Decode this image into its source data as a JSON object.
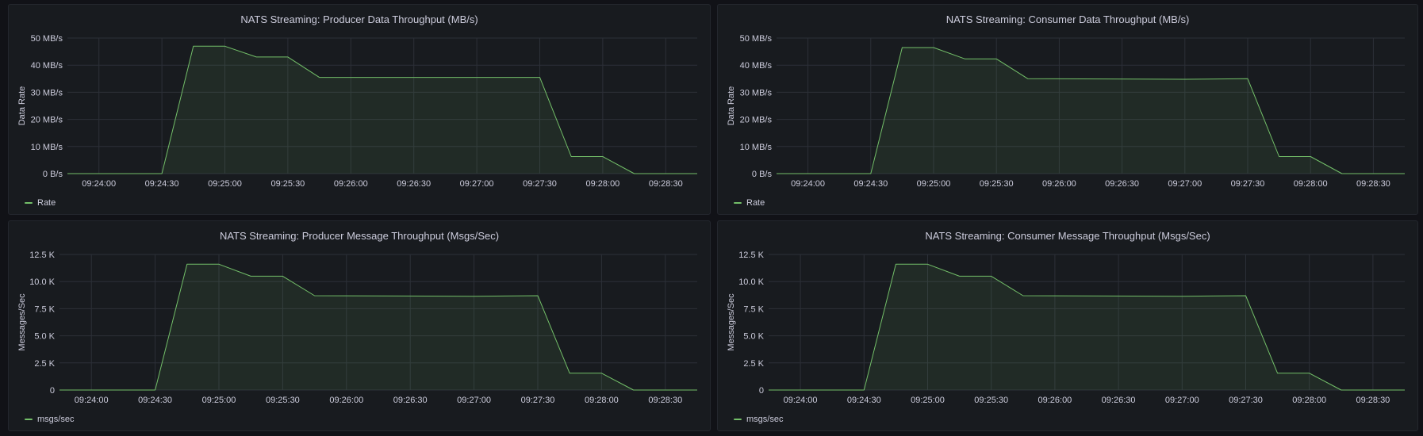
{
  "colors": {
    "series": "#73bf69",
    "grid": "#2c3038",
    "panel_bg": "#181b1f",
    "page_bg": "#111217"
  },
  "chart_data": [
    {
      "type": "area",
      "title": "NATS Streaming: Producer Data Throughput (MB/s)",
      "xlabel": "",
      "ylabel": "Data Rate",
      "ylim": [
        0,
        50
      ],
      "xlim": [
        "09:23:45",
        "09:28:45"
      ],
      "y_ticks": [
        0,
        10,
        20,
        30,
        40,
        50
      ],
      "y_tick_labels": [
        "0 B/s",
        "10 MB/s",
        "20 MB/s",
        "30 MB/s",
        "40 MB/s",
        "50 MB/s"
      ],
      "x_ticks": [
        "09:24:00",
        "09:24:30",
        "09:25:00",
        "09:25:30",
        "09:26:00",
        "09:26:30",
        "09:27:00",
        "09:27:30",
        "09:28:00",
        "09:28:30"
      ],
      "grid": true,
      "legend_position": "bottom-left",
      "series": [
        {
          "name": "Rate",
          "x": [
            "09:23:45",
            "09:24:30",
            "09:24:45",
            "09:25:00",
            "09:25:15",
            "09:25:30",
            "09:25:45",
            "09:27:30",
            "09:27:45",
            "09:28:00",
            "09:28:15",
            "09:28:45"
          ],
          "y": [
            0,
            0,
            47,
            47,
            43,
            43,
            35.5,
            35.5,
            6.3,
            6.3,
            0,
            0
          ]
        }
      ]
    },
    {
      "type": "area",
      "title": "NATS Streaming: Consumer Data Throughput (MB/s)",
      "xlabel": "",
      "ylabel": "Data Rate",
      "ylim": [
        0,
        50
      ],
      "xlim": [
        "09:23:45",
        "09:28:45"
      ],
      "y_ticks": [
        0,
        10,
        20,
        30,
        40,
        50
      ],
      "y_tick_labels": [
        "0 B/s",
        "10 MB/s",
        "20 MB/s",
        "30 MB/s",
        "40 MB/s",
        "50 MB/s"
      ],
      "x_ticks": [
        "09:24:00",
        "09:24:30",
        "09:25:00",
        "09:25:30",
        "09:26:00",
        "09:26:30",
        "09:27:00",
        "09:27:30",
        "09:28:00",
        "09:28:30"
      ],
      "grid": true,
      "legend_position": "bottom-left",
      "series": [
        {
          "name": "Rate",
          "x": [
            "09:23:45",
            "09:24:30",
            "09:24:45",
            "09:25:00",
            "09:25:15",
            "09:25:30",
            "09:25:45",
            "09:27:00",
            "09:27:30",
            "09:27:45",
            "09:28:00",
            "09:28:15",
            "09:28:45"
          ],
          "y": [
            0,
            0,
            46.5,
            46.5,
            42.3,
            42.3,
            35,
            34.8,
            35,
            6.3,
            6.3,
            0,
            0
          ]
        }
      ]
    },
    {
      "type": "area",
      "title": "NATS Streaming: Producer Message Throughput (Msgs/Sec)",
      "xlabel": "",
      "ylabel": "Messages/Sec",
      "ylim": [
        0,
        12500
      ],
      "xlim": [
        "09:23:45",
        "09:28:45"
      ],
      "y_ticks": [
        0,
        2500,
        5000,
        7500,
        10000,
        12500
      ],
      "y_tick_labels": [
        "0",
        "2.5 K",
        "5.0 K",
        "7.5 K",
        "10.0 K",
        "12.5 K"
      ],
      "x_ticks": [
        "09:24:00",
        "09:24:30",
        "09:25:00",
        "09:25:30",
        "09:26:00",
        "09:26:30",
        "09:27:00",
        "09:27:30",
        "09:28:00",
        "09:28:30"
      ],
      "grid": true,
      "legend_position": "bottom-left",
      "series": [
        {
          "name": "msgs/sec",
          "x": [
            "09:23:45",
            "09:24:30",
            "09:24:45",
            "09:25:00",
            "09:25:15",
            "09:25:30",
            "09:25:45",
            "09:27:00",
            "09:27:30",
            "09:27:45",
            "09:28:00",
            "09:28:15",
            "09:28:45"
          ],
          "y": [
            0,
            0,
            11600,
            11600,
            10500,
            10500,
            8700,
            8650,
            8700,
            1550,
            1550,
            0,
            0
          ]
        }
      ]
    },
    {
      "type": "area",
      "title": "NATS Streaming: Consumer Message Throughput (Msgs/Sec)",
      "xlabel": "",
      "ylabel": "Messages/Sec",
      "ylim": [
        0,
        12500
      ],
      "xlim": [
        "09:23:45",
        "09:28:45"
      ],
      "y_ticks": [
        0,
        2500,
        5000,
        7500,
        10000,
        12500
      ],
      "y_tick_labels": [
        "0",
        "2.5 K",
        "5.0 K",
        "7.5 K",
        "10.0 K",
        "12.5 K"
      ],
      "x_ticks": [
        "09:24:00",
        "09:24:30",
        "09:25:00",
        "09:25:30",
        "09:26:00",
        "09:26:30",
        "09:27:00",
        "09:27:30",
        "09:28:00",
        "09:28:30"
      ],
      "grid": true,
      "legend_position": "bottom-left",
      "series": [
        {
          "name": "msgs/sec",
          "x": [
            "09:23:45",
            "09:24:30",
            "09:24:45",
            "09:25:00",
            "09:25:15",
            "09:25:30",
            "09:25:45",
            "09:27:00",
            "09:27:30",
            "09:27:45",
            "09:28:00",
            "09:28:15",
            "09:28:45"
          ],
          "y": [
            0,
            0,
            11600,
            11600,
            10500,
            10500,
            8700,
            8650,
            8700,
            1550,
            1550,
            0,
            0
          ]
        }
      ]
    }
  ]
}
